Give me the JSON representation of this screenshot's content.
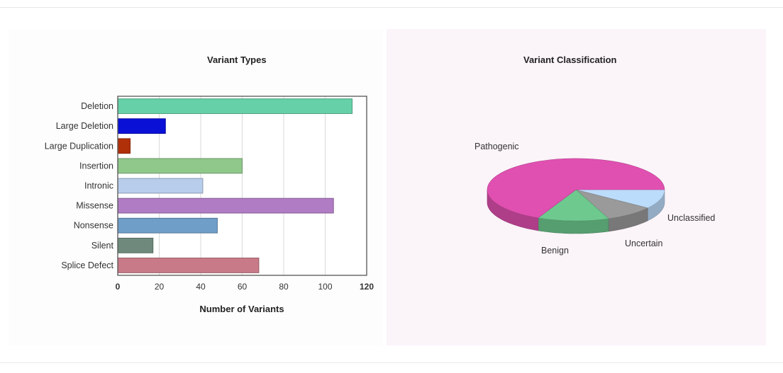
{
  "chart_data": [
    {
      "type": "bar",
      "orientation": "horizontal",
      "title": "Variant Types",
      "xlabel": "Number of Variants",
      "ylabel": "",
      "categories": [
        "Deletion",
        "Large Deletion",
        "Large Duplication",
        "Insertion",
        "Intronic",
        "Missense",
        "Nonsense",
        "Silent",
        "Splice Defect"
      ],
      "values": [
        113,
        23,
        6,
        60,
        41,
        104,
        48,
        17,
        68
      ],
      "colors": [
        "#66d1a8",
        "#0a10d6",
        "#b0300a",
        "#8fc88a",
        "#b8cdec",
        "#b07cc4",
        "#6f9ec8",
        "#6f8a7c",
        "#c97a88"
      ],
      "xlim": [
        0,
        120
      ],
      "xticks": [
        0,
        20,
        40,
        60,
        80,
        100,
        120
      ],
      "grid": true,
      "legend": "none"
    },
    {
      "type": "pie",
      "style": "3d",
      "title": "Variant Classification",
      "labels": [
        "Pathogenic",
        "Benign",
        "Uncertain",
        "Unclassified"
      ],
      "values": [
        68,
        13,
        9,
        10
      ],
      "colors": [
        "#e050b0",
        "#6ec98f",
        "#9a9a9a",
        "#bcdcfb"
      ],
      "legend": "none"
    }
  ]
}
